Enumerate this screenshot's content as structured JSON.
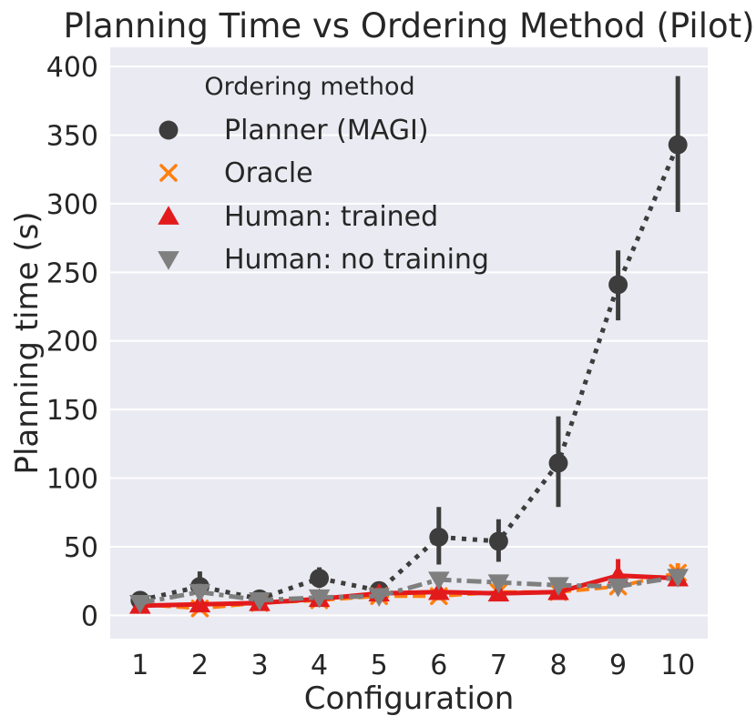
{
  "chart_data": {
    "type": "line",
    "title": "Planning Time vs Ordering Method (Pilot)",
    "xlabel": "Configuration",
    "ylabel": "Planning time (s)",
    "categories": [
      "1",
      "2",
      "3",
      "4",
      "5",
      "6",
      "7",
      "8",
      "9",
      "10"
    ],
    "ylim": [
      -17,
      414
    ],
    "yticks": [
      0,
      50,
      100,
      150,
      200,
      250,
      300,
      350,
      400
    ],
    "grid": true,
    "legend": {
      "title": "Ordering method",
      "placement": "top-left"
    },
    "series": [
      {
        "name": "Planner (MAGI)",
        "color": "#3d3d3d",
        "marker": "circle",
        "linestyle": "dotted",
        "values": [
          11,
          21,
          12,
          27,
          18,
          57,
          54,
          111,
          241,
          343
        ],
        "err_low": [
          6,
          12,
          8,
          20,
          14,
          37,
          39,
          79,
          215,
          294
        ],
        "err_high": [
          17,
          32,
          16,
          35,
          20,
          79,
          70,
          145,
          266,
          393
        ]
      },
      {
        "name": "Oracle",
        "color": "#ff7f0e",
        "marker": "x",
        "linestyle": "dashed",
        "values": [
          8,
          5,
          9,
          11,
          14,
          14,
          17,
          17,
          21,
          31
        ],
        "err_low": [
          5,
          3,
          7,
          8,
          12,
          11,
          14,
          14,
          19,
          24
        ],
        "err_high": [
          11,
          8,
          11,
          14,
          16,
          17,
          20,
          20,
          24,
          38
        ]
      },
      {
        "name": "Human: trained",
        "color": "#e31a1c",
        "marker": "triangle-up",
        "linestyle": "solid",
        "values": [
          7,
          8,
          9,
          12,
          16,
          17,
          16,
          17,
          29,
          27
        ],
        "err_low": [
          5,
          6,
          7,
          9,
          13,
          12,
          13,
          14,
          21,
          22
        ],
        "err_high": [
          10,
          10,
          11,
          15,
          19,
          22,
          20,
          21,
          41,
          33
        ]
      },
      {
        "name": "Human: no training",
        "color": "#7f7f7f",
        "marker": "triangle-down",
        "linestyle": "dashdot",
        "values": [
          9,
          17,
          11,
          13,
          14,
          26,
          24,
          22,
          21,
          28
        ],
        "err_low": [
          6,
          12,
          8,
          10,
          12,
          22,
          20,
          18,
          17,
          24
        ],
        "err_high": [
          12,
          23,
          14,
          16,
          17,
          29,
          28,
          27,
          25,
          32
        ]
      }
    ]
  }
}
